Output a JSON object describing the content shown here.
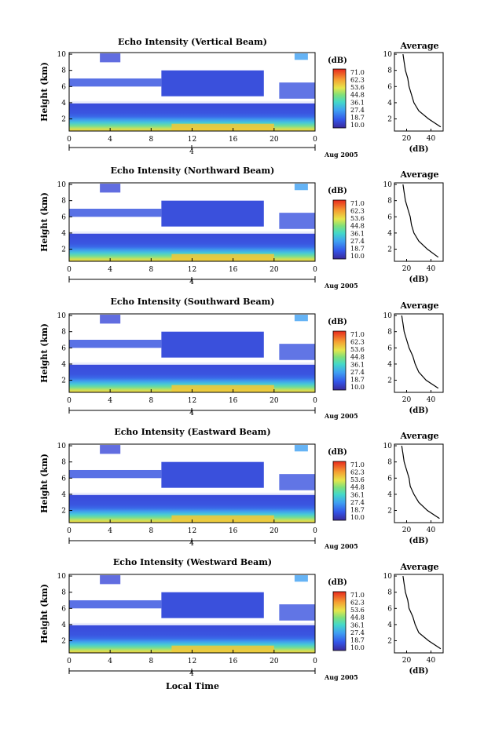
{
  "x_axis_label": "Local Time",
  "colorbar": {
    "unit": "(dB)",
    "ticks": [
      "71.0",
      "62.3",
      "53.6",
      "44.8",
      "36.1",
      "27.4",
      "18.7",
      "10.0"
    ]
  },
  "profile": {
    "title": "Average",
    "xlabel": "(dB)",
    "xticks": [
      "20",
      "40"
    ],
    "profile_heights": [
      1,
      2,
      3,
      4,
      5,
      6,
      7,
      8,
      9,
      10
    ]
  },
  "chart_data": [
    {
      "type": "heatmap",
      "title": "Echo Intensity (Vertical Beam)",
      "ylabel": "Height (km)",
      "xticks": [
        "0",
        "4",
        "8",
        "12",
        "16",
        "20",
        "0"
      ],
      "yticks": [
        "2",
        "4",
        "6",
        "8",
        "10"
      ],
      "date_marker": "4",
      "date_label": "Aug 2005",
      "xlim": [
        0,
        24
      ],
      "ylim": [
        0.5,
        10.2
      ],
      "profile_values": [
        48,
        38,
        30,
        26,
        24,
        22,
        21,
        19,
        18,
        17
      ]
    },
    {
      "type": "heatmap",
      "title": "Echo Intensity (Northward Beam)",
      "ylabel": "Height (km)",
      "xticks": [
        "0",
        "4",
        "8",
        "12",
        "16",
        "20",
        "0"
      ],
      "yticks": [
        "2",
        "4",
        "6",
        "8",
        "10"
      ],
      "date_marker": "4",
      "date_label": "Aug 2005",
      "xlim": [
        0,
        24
      ],
      "ylim": [
        0.5,
        10.2
      ],
      "profile_values": [
        46,
        37,
        30,
        26,
        24,
        23,
        21,
        19,
        18,
        17
      ]
    },
    {
      "type": "heatmap",
      "title": "Echo Intensity (Southward Beam)",
      "ylabel": "Height (km)",
      "xticks": [
        "0",
        "4",
        "8",
        "12",
        "16",
        "20",
        "0"
      ],
      "yticks": [
        "2",
        "4",
        "6",
        "8",
        "10"
      ],
      "date_marker": "4",
      "date_label": "Aug 2005",
      "xlim": [
        0,
        24
      ],
      "ylim": [
        0.5,
        10.2
      ],
      "profile_values": [
        46,
        36,
        30,
        27,
        25,
        22,
        20,
        18,
        17,
        16
      ]
    },
    {
      "type": "heatmap",
      "title": "Echo Intensity (Eastward Beam)",
      "ylabel": "Height (km)",
      "xticks": [
        "0",
        "4",
        "8",
        "12",
        "16",
        "20",
        "0"
      ],
      "yticks": [
        "2",
        "4",
        "6",
        "8",
        "10"
      ],
      "date_marker": "4",
      "date_label": "Aug 2005",
      "xlim": [
        0,
        24
      ],
      "ylim": [
        0.5,
        10.2
      ],
      "profile_values": [
        47,
        37,
        30,
        26,
        23,
        22,
        20,
        18,
        17,
        16
      ]
    },
    {
      "type": "heatmap",
      "title": "Echo Intensity (Westward Beam)",
      "ylabel": "Height (km)",
      "xticks": [
        "0",
        "4",
        "8",
        "12",
        "16",
        "20",
        "0"
      ],
      "yticks": [
        "2",
        "4",
        "6",
        "8",
        "10"
      ],
      "date_marker": "4",
      "date_label": "Aug 2005",
      "xlim": [
        0,
        24
      ],
      "ylim": [
        0.5,
        10.2
      ],
      "profile_values": [
        48,
        38,
        30,
        27,
        25,
        22,
        21,
        19,
        18,
        17
      ]
    }
  ]
}
